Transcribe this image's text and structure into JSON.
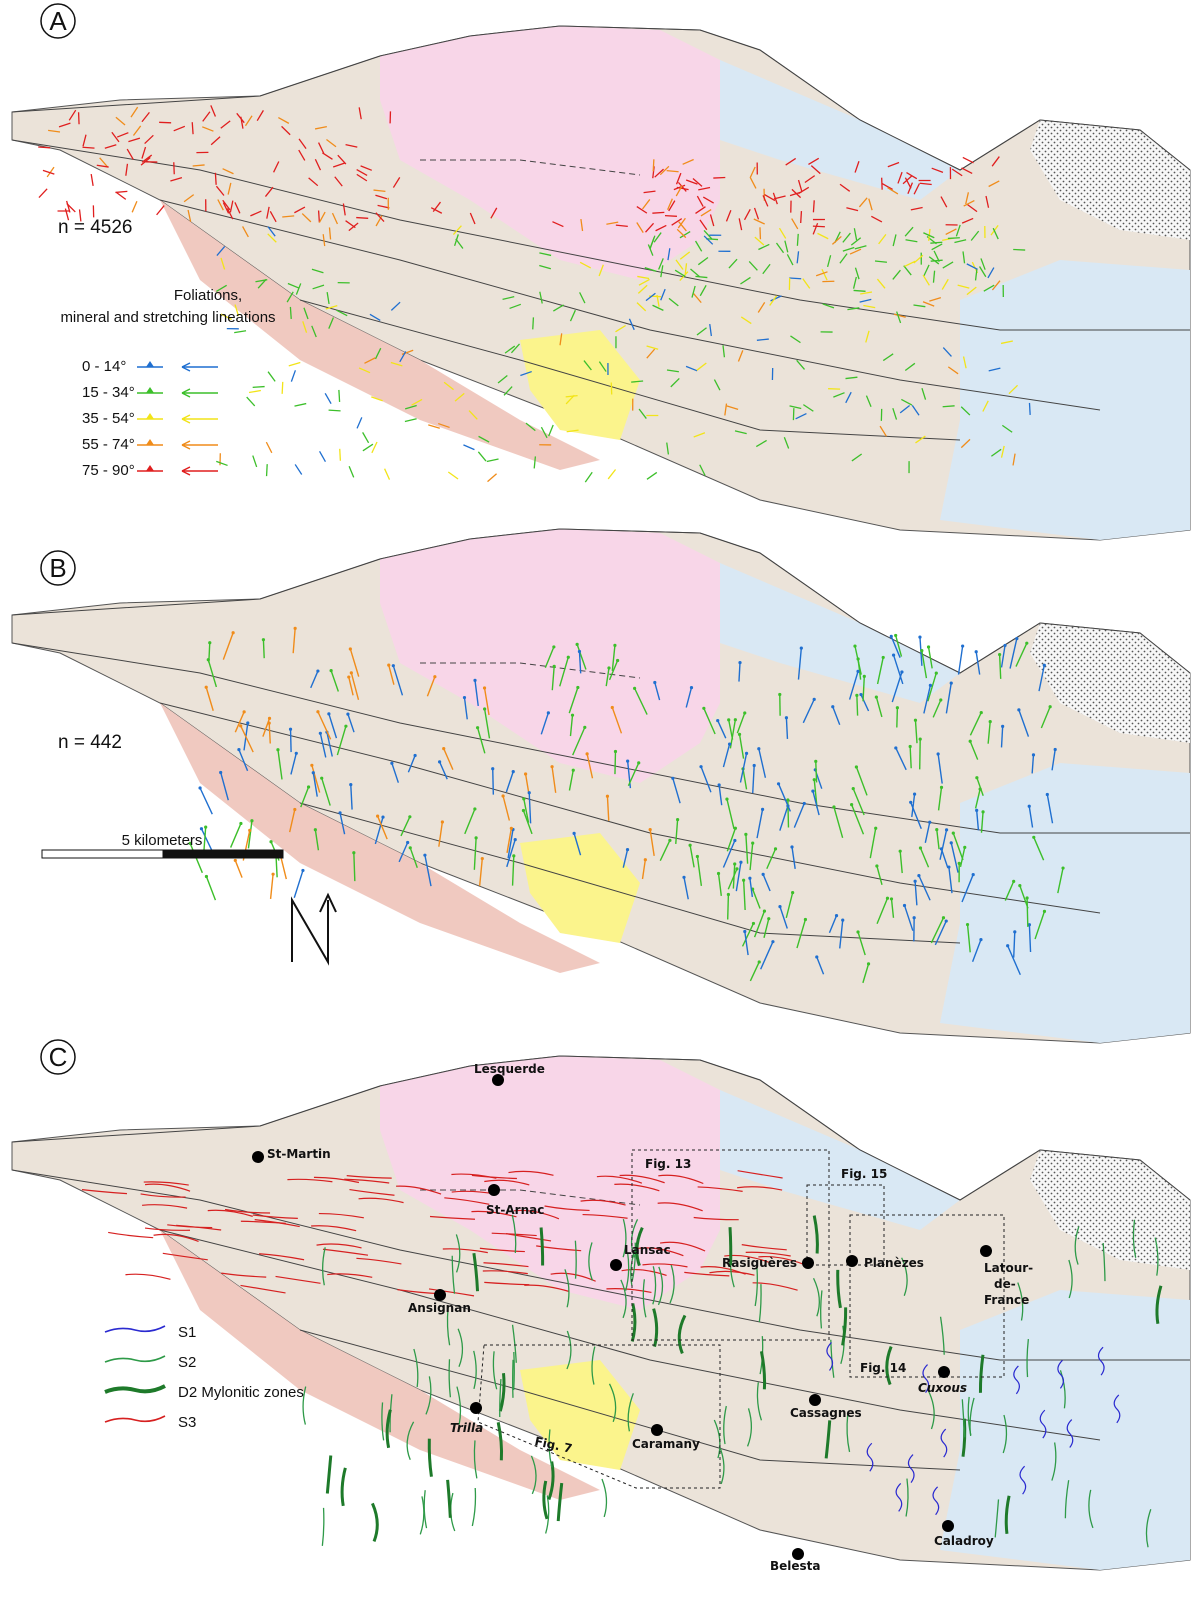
{
  "panels": [
    {
      "letter": "A",
      "count_label": "n = 4526"
    },
    {
      "letter": "B",
      "count_label": "n = 442"
    },
    {
      "letter": "C"
    }
  ],
  "legend_a": {
    "title_line1": "Foliations,",
    "title_line2": "mineral and stretching lineations",
    "classes": [
      {
        "label": "0 - 14°",
        "color": "#1f6fd0"
      },
      {
        "label": "15 - 34°",
        "color": "#3cbf2a"
      },
      {
        "label": "35 - 54°",
        "color": "#f2e418"
      },
      {
        "label": "55 - 74°",
        "color": "#f08c1a"
      },
      {
        "label": "75 - 90°",
        "color": "#e01e1e"
      }
    ]
  },
  "scale_bar": {
    "label": "5 kilometers"
  },
  "legend_c": [
    {
      "label": "S1",
      "color": "#2a2ad0"
    },
    {
      "label": "S2",
      "color": "#2e9a48"
    },
    {
      "label": "D2 Mylonitic zones",
      "color": "#1e7a2a"
    },
    {
      "label": "S3",
      "color": "#d62020"
    }
  ],
  "places": [
    {
      "name": "Lesquerde",
      "style": "normal"
    },
    {
      "name": "St-Martin",
      "style": "normal"
    },
    {
      "name": "St-Arnac",
      "style": "normal"
    },
    {
      "name": "Lansac",
      "style": "normal"
    },
    {
      "name": "Rasiguères",
      "style": "normal"
    },
    {
      "name": "Planèzes",
      "style": "normal"
    },
    {
      "name": "Latour-",
      "style": "normal"
    },
    {
      "name": "de-",
      "style": "normal"
    },
    {
      "name": "France",
      "style": "normal"
    },
    {
      "name": "Ansignan",
      "style": "normal"
    },
    {
      "name": "Cuxous",
      "style": "italic"
    },
    {
      "name": "Cassagnes",
      "style": "normal"
    },
    {
      "name": "Trilla",
      "style": "italic"
    },
    {
      "name": "Caramany",
      "style": "normal"
    },
    {
      "name": "Belesta",
      "style": "normal"
    },
    {
      "name": "Caladroy",
      "style": "normal"
    }
  ],
  "figure_boxes": [
    "Fig. 13",
    "Fig. 15",
    "Fig. 14",
    "Fig. 7"
  ],
  "colors": {
    "granite": "#f8d6e8",
    "gneiss": "#ebe3d9",
    "micaschist": "#f0c9c0",
    "marble": "#fbf48c",
    "cover": "#d9e8f4",
    "grey": "#dcdcdc"
  }
}
